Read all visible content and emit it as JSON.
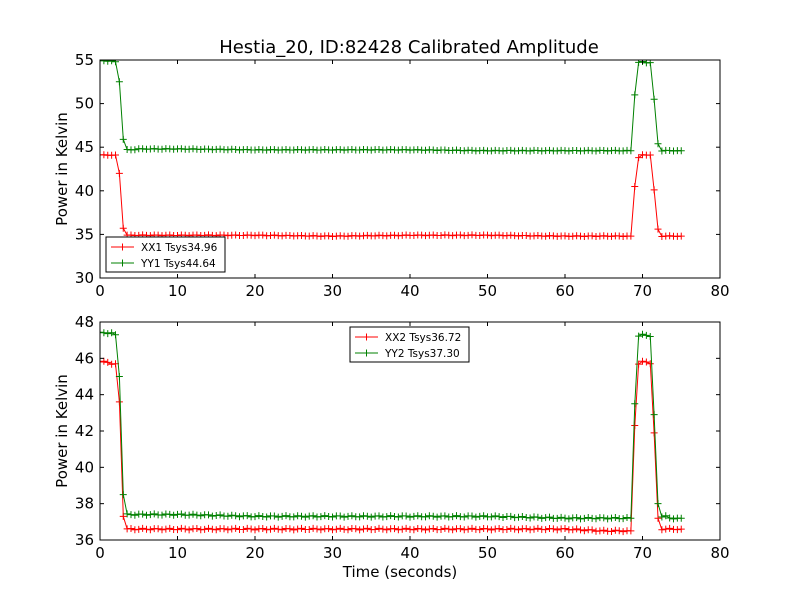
{
  "title": "Hestia_20, ID:82428 Calibrated Amplitude",
  "chart_data": [
    {
      "type": "line",
      "title": "Hestia_20, ID:82428 Calibrated Amplitude",
      "xlabel": "",
      "ylabel": "Power in Kelvin",
      "xlim": [
        0,
        80
      ],
      "ylim": [
        30,
        55
      ],
      "xticks": [
        "0",
        "10",
        "20",
        "30",
        "40",
        "50",
        "60",
        "70",
        "80"
      ],
      "yticks": [
        "30",
        "35",
        "40",
        "45",
        "50",
        "55"
      ],
      "grid": false,
      "legend_position": "lower-left",
      "series": [
        {
          "name": "XX1 Tsys34.96",
          "color": "#ff0000",
          "marker": "plus",
          "x": [
            0,
            0.5,
            1,
            1.5,
            2,
            2.5,
            3,
            3.5,
            4,
            5,
            10,
            20,
            30,
            40,
            50,
            60,
            65,
            68.5,
            69,
            69.5,
            70,
            70.5,
            71,
            71.5,
            72,
            72.5,
            73,
            73.5,
            74,
            74.5,
            75
          ],
          "y": [
            44.1,
            44.1,
            44.1,
            44.1,
            44.1,
            42.0,
            35.7,
            34.9,
            34.9,
            34.9,
            34.9,
            34.9,
            34.8,
            34.9,
            34.9,
            34.8,
            34.8,
            34.8,
            40.5,
            43.8,
            44.1,
            44.1,
            44.1,
            40.1,
            35.6,
            34.8,
            34.8,
            34.8,
            34.8,
            34.8,
            34.8
          ]
        },
        {
          "name": "YY1 Tsys44.64",
          "color": "#008000",
          "marker": "plus",
          "x": [
            0,
            0.5,
            1,
            1.5,
            2,
            2.5,
            3,
            3.5,
            4,
            5,
            10,
            20,
            30,
            40,
            50,
            60,
            65,
            68.5,
            69,
            69.5,
            70,
            70.5,
            71,
            71.5,
            72,
            72.5,
            73,
            73.5,
            74,
            74.5,
            75
          ],
          "y": [
            54.9,
            54.9,
            54.9,
            54.9,
            54.8,
            52.5,
            45.9,
            44.7,
            44.7,
            44.8,
            44.8,
            44.7,
            44.7,
            44.7,
            44.6,
            44.6,
            44.6,
            44.6,
            51.0,
            54.7,
            54.8,
            54.7,
            54.7,
            50.5,
            45.4,
            44.6,
            44.6,
            44.6,
            44.6,
            44.6,
            44.6
          ]
        }
      ]
    },
    {
      "type": "line",
      "title": "",
      "xlabel": "Time (seconds)",
      "ylabel": "Power in Kelvin",
      "xlim": [
        0,
        80
      ],
      "ylim": [
        36,
        48
      ],
      "xticks": [
        "0",
        "10",
        "20",
        "30",
        "40",
        "50",
        "60",
        "70",
        "80"
      ],
      "yticks": [
        "36",
        "38",
        "40",
        "42",
        "44",
        "46",
        "48"
      ],
      "grid": false,
      "legend_position": "upper-center",
      "series": [
        {
          "name": "XX2 Tsys36.72",
          "color": "#ff0000",
          "marker": "plus",
          "x": [
            0,
            0.5,
            1,
            1.5,
            2,
            2.5,
            3,
            3.5,
            4,
            5,
            10,
            20,
            30,
            40,
            50,
            60,
            65,
            68.5,
            69,
            69.5,
            70,
            70.5,
            71,
            71.5,
            72,
            72.5,
            73,
            73.5,
            74,
            74.5,
            75
          ],
          "y": [
            45.8,
            45.8,
            45.8,
            45.7,
            45.7,
            43.6,
            37.3,
            36.6,
            36.6,
            36.6,
            36.6,
            36.6,
            36.6,
            36.6,
            36.6,
            36.6,
            36.5,
            36.5,
            42.3,
            45.7,
            45.8,
            45.8,
            45.7,
            41.9,
            37.2,
            36.6,
            36.6,
            36.6,
            36.6,
            36.6,
            36.6
          ]
        },
        {
          "name": "YY2 Tsys37.30",
          "color": "#008000",
          "marker": "plus",
          "x": [
            0,
            0.5,
            1,
            1.5,
            2,
            2.5,
            3,
            3.5,
            4,
            5,
            10,
            20,
            30,
            40,
            50,
            60,
            65,
            68.5,
            69,
            69.5,
            70,
            70.5,
            71,
            71.5,
            72,
            72.5,
            73,
            73.5,
            74,
            74.5,
            75
          ],
          "y": [
            47.4,
            47.4,
            47.4,
            47.4,
            47.3,
            45.0,
            38.5,
            37.4,
            37.4,
            37.4,
            37.4,
            37.3,
            37.3,
            37.3,
            37.3,
            37.2,
            37.2,
            37.2,
            43.5,
            47.2,
            47.3,
            47.3,
            47.2,
            42.9,
            38.0,
            37.3,
            37.3,
            37.2,
            37.2,
            37.2,
            37.2
          ]
        }
      ]
    }
  ]
}
